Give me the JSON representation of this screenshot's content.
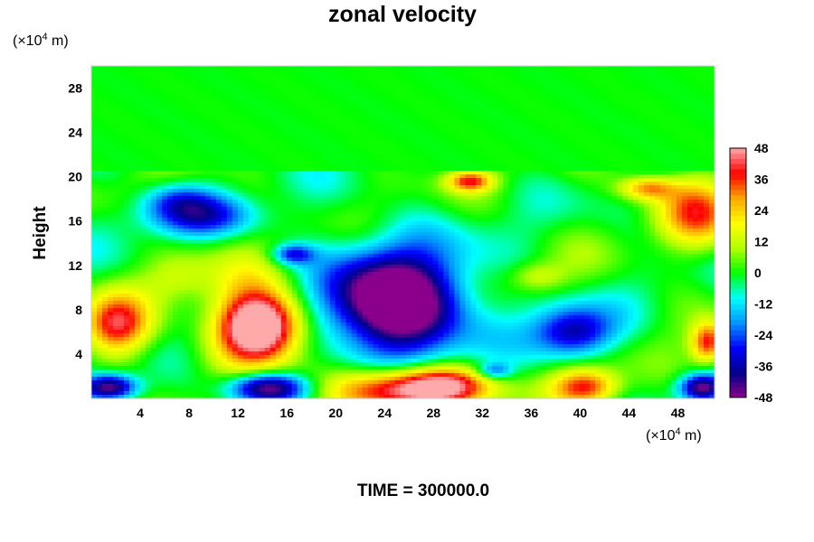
{
  "chart_data": {
    "type": "heatmap",
    "title": "zonal velocity",
    "ylabel": "Height",
    "xlabel": "",
    "x_unit": {
      "prefix": "(×10",
      "exp": "4",
      "suffix": " m)"
    },
    "y_unit": {
      "prefix": "(×10",
      "exp": "4",
      "suffix": " m)"
    },
    "xlim": [
      0,
      51
    ],
    "ylim": [
      0,
      30
    ],
    "xticks": [
      4,
      8,
      12,
      16,
      20,
      24,
      28,
      32,
      36,
      40,
      44,
      48
    ],
    "yticks": [
      4,
      8,
      12,
      16,
      20,
      24,
      28
    ],
    "colorbar": {
      "min": -48,
      "max": 48,
      "tick_values": [
        -48,
        -36,
        -24,
        -12,
        0,
        12,
        24,
        36,
        48
      ],
      "stops": [
        "#8b008b",
        "#00008b",
        "#0000ff",
        "#0096ff",
        "#00ffff",
        "#00ff00",
        "#b4ff00",
        "#ffff00",
        "#ffa500",
        "#ff0000",
        "#ffaaaa"
      ]
    },
    "field": {
      "background": 0,
      "upper_layer_top": 30,
      "upper_layer_bottom": 20.5,
      "features": [
        {
          "x": 25,
          "y": 8.5,
          "rx": 5.5,
          "ry": 4.5,
          "value": -50
        },
        {
          "x": 24.5,
          "y": 9,
          "rx": 8,
          "ry": 6.5,
          "value": -20
        },
        {
          "x": 39.5,
          "y": 6,
          "rx": 3.5,
          "ry": 2.5,
          "value": -38
        },
        {
          "x": 8.5,
          "y": 16.5,
          "rx": 5,
          "ry": 2,
          "value": -28
        },
        {
          "x": 7,
          "y": 18,
          "rx": 3,
          "ry": 1.5,
          "value": -15
        },
        {
          "x": 13.8,
          "y": 6.5,
          "rx": 3.5,
          "ry": 3,
          "value": 50
        },
        {
          "x": 13.5,
          "y": 7.5,
          "rx": 4.5,
          "ry": 5,
          "value": 25
        },
        {
          "x": 2,
          "y": 6.5,
          "rx": 3,
          "ry": 3,
          "value": 40
        },
        {
          "x": 25,
          "y": 0.8,
          "rx": 6,
          "ry": 2.2,
          "value": 50
        },
        {
          "x": 29,
          "y": 1.2,
          "rx": 4,
          "ry": 1.8,
          "value": 30
        },
        {
          "x": 40.5,
          "y": 1,
          "rx": 3,
          "ry": 1.8,
          "value": 38
        },
        {
          "x": 49.5,
          "y": 17,
          "rx": 3.5,
          "ry": 3.5,
          "value": 30
        },
        {
          "x": 45.5,
          "y": 19,
          "rx": 2.5,
          "ry": 1.2,
          "value": 30
        },
        {
          "x": 31,
          "y": 19.6,
          "rx": 2,
          "ry": 1,
          "value": 34
        },
        {
          "x": 50.5,
          "y": 5,
          "rx": 1.5,
          "ry": 2,
          "value": 38
        },
        {
          "x": 14.5,
          "y": 1,
          "rx": 3.5,
          "ry": 1.5,
          "value": -50
        },
        {
          "x": 1.5,
          "y": 1,
          "rx": 2.5,
          "ry": 1.3,
          "value": -50
        },
        {
          "x": 50,
          "y": 1,
          "rx": 2,
          "ry": 1.3,
          "value": -45
        },
        {
          "x": 16.5,
          "y": 13,
          "rx": 1.8,
          "ry": 1,
          "value": -28
        },
        {
          "x": 33,
          "y": 2.5,
          "rx": 1.5,
          "ry": 0.8,
          "value": -22
        },
        {
          "x": 36.5,
          "y": 11,
          "rx": 2.5,
          "ry": 1.5,
          "value": 14
        },
        {
          "x": 7,
          "y": 11,
          "rx": 3,
          "ry": 2.5,
          "value": 12
        }
      ]
    }
  },
  "footer": {
    "time_label": "TIME = 300000.0"
  }
}
